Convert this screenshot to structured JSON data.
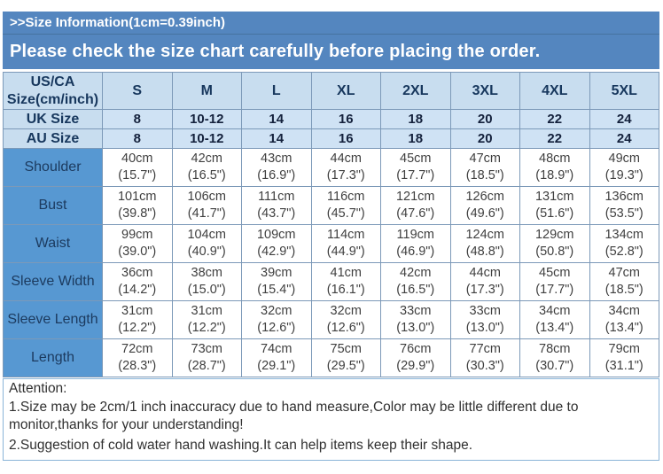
{
  "header": {
    "size_info": ">>Size Information(1cm=0.39inch)",
    "notice": "Please check the size chart carefully before placing the order."
  },
  "colors": {
    "banner_blue": "#5486bf",
    "label_column_blue": "#5798d2",
    "light_cell_blue": "#c8ddef",
    "grid_border": "#7c99b8",
    "heading_text": "#17375d"
  },
  "table": {
    "corner": {
      "line1": "US/CA",
      "line2": "Size(cm/inch)"
    },
    "sizes": [
      "S",
      "M",
      "L",
      "XL",
      "2XL",
      "3XL",
      "4XL",
      "5XL"
    ],
    "uk": {
      "label": "UK Size",
      "values": [
        "8",
        "10-12",
        "14",
        "16",
        "18",
        "20",
        "22",
        "24"
      ]
    },
    "au": {
      "label": "AU Size",
      "values": [
        "8",
        "10-12",
        "14",
        "16",
        "18",
        "20",
        "22",
        "24"
      ]
    },
    "rows": [
      {
        "label": "Shoulder",
        "cm": [
          "40cm",
          "42cm",
          "43cm",
          "44cm",
          "45cm",
          "47cm",
          "48cm",
          "49cm"
        ],
        "inch": [
          "(15.7\")",
          "(16.5\")",
          "(16.9\")",
          "(17.3\")",
          "(17.7\")",
          "(18.5\")",
          "(18.9\")",
          "(19.3\")"
        ]
      },
      {
        "label": "Bust",
        "cm": [
          "101cm",
          "106cm",
          "111cm",
          "116cm",
          "121cm",
          "126cm",
          "131cm",
          "136cm"
        ],
        "inch": [
          "(39.8\")",
          "(41.7\")",
          "(43.7\")",
          "(45.7\")",
          "(47.6\")",
          "(49.6\")",
          "(51.6\")",
          "(53.5\")"
        ]
      },
      {
        "label": "Waist",
        "cm": [
          "99cm",
          "104cm",
          "109cm",
          "114cm",
          "119cm",
          "124cm",
          "129cm",
          "134cm"
        ],
        "inch": [
          "(39.0\")",
          "(40.9\")",
          "(42.9\")",
          "(44.9\")",
          "(46.9\")",
          "(48.8\")",
          "(50.8\")",
          "(52.8\")"
        ]
      },
      {
        "label": "Sleeve Width",
        "cm": [
          "36cm",
          "38cm",
          "39cm",
          "41cm",
          "42cm",
          "44cm",
          "45cm",
          "47cm"
        ],
        "inch": [
          "(14.2\")",
          "(15.0\")",
          "(15.4\")",
          "(16.1\")",
          "(16.5\")",
          "(17.3\")",
          "(17.7\")",
          "(18.5\")"
        ]
      },
      {
        "label": "Sleeve Length",
        "cm": [
          "31cm",
          "31cm",
          "32cm",
          "32cm",
          "33cm",
          "33cm",
          "34cm",
          "34cm"
        ],
        "inch": [
          "(12.2\")",
          "(12.2\")",
          "(12.6\")",
          "(12.6\")",
          "(13.0\")",
          "(13.0\")",
          "(13.4\")",
          "(13.4\")"
        ]
      },
      {
        "label": "Length",
        "cm": [
          "72cm",
          "73cm",
          "74cm",
          "75cm",
          "76cm",
          "77cm",
          "78cm",
          "79cm"
        ],
        "inch": [
          "(28.3\")",
          "(28.7\")",
          "(29.1\")",
          "(29.5\")",
          "(29.9\")",
          "(30.3\")",
          "(30.7\")",
          "(31.1\")"
        ]
      }
    ]
  },
  "attention": {
    "title": "Attention:",
    "note1": "1.Size may be 2cm/1 inch inaccuracy due to hand measure,Color may be little different due to monitor,thanks for your understanding!",
    "note2": "2.Suggestion of cold water hand washing.It can help items keep their shape."
  }
}
